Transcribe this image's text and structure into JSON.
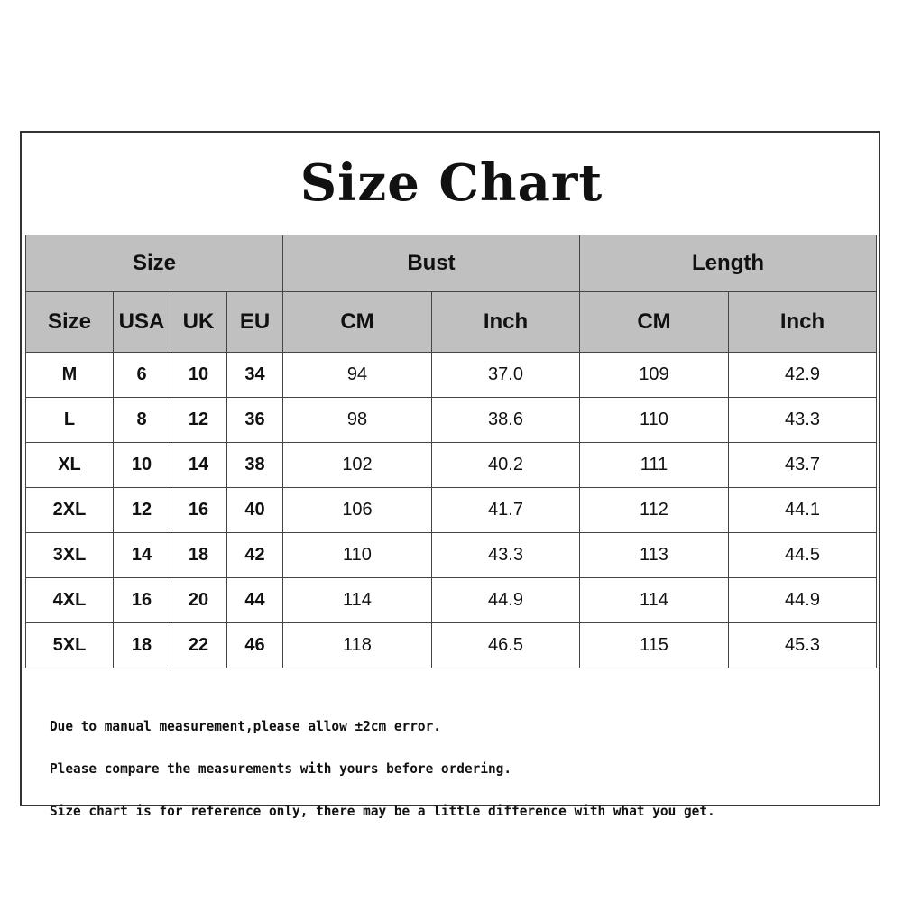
{
  "title": "Size Chart",
  "header_groups": [
    "Size",
    "Bust",
    "Length"
  ],
  "sub_headers": [
    "Size",
    "USA",
    "UK",
    "EU",
    "CM",
    "Inch",
    "CM",
    "Inch"
  ],
  "rows": [
    [
      "M",
      "6",
      "10",
      "34",
      "94",
      "37.0",
      "109",
      "42.9"
    ],
    [
      "L",
      "8",
      "12",
      "36",
      "98",
      "38.6",
      "110",
      "43.3"
    ],
    [
      "XL",
      "10",
      "14",
      "38",
      "102",
      "40.2",
      "111",
      "43.7"
    ],
    [
      "2XL",
      "12",
      "16",
      "40",
      "106",
      "41.7",
      "112",
      "44.1"
    ],
    [
      "3XL",
      "14",
      "18",
      "42",
      "110",
      "43.3",
      "113",
      "44.5"
    ],
    [
      "4XL",
      "16",
      "20",
      "44",
      "114",
      "44.9",
      "114",
      "44.9"
    ],
    [
      "5XL",
      "18",
      "22",
      "46",
      "118",
      "46.5",
      "115",
      "45.3"
    ]
  ],
  "notes": [
    "Due to manual measurement,please allow ±2cm error.",
    "Please compare the measurements with yours before ordering.",
    "Size chart is for reference only, there may be a little difference with what you get."
  ],
  "colors": {
    "header_bg": "#c0c0c0",
    "border": "#444444"
  }
}
